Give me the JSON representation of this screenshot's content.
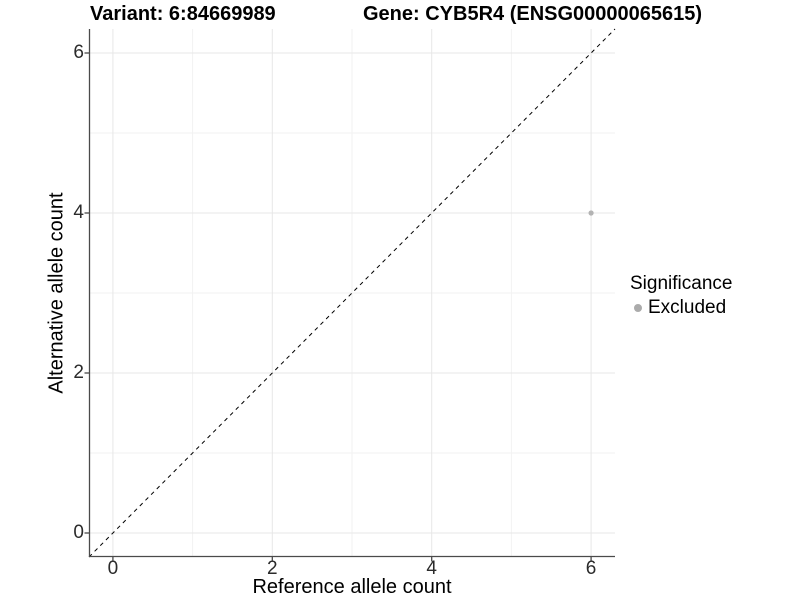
{
  "titles": {
    "left": "Variant: 6:84669989",
    "right": "Gene: CYB5R4 (ENSG00000065615)"
  },
  "chart_data": {
    "type": "scatter",
    "title": "Variant: 6:84669989 — Gene: CYB5R4 (ENSG00000065615)",
    "xlabel": "Reference allele count",
    "ylabel": "Alternative allele count",
    "xlim": [
      -0.3,
      6.3
    ],
    "ylim": [
      -0.3,
      6.3
    ],
    "xticks": [
      0,
      2,
      4,
      6
    ],
    "yticks": [
      0,
      2,
      4,
      6
    ],
    "x_minor_ticks": [
      1,
      3,
      5
    ],
    "y_minor_ticks": [
      1,
      3,
      5
    ],
    "grid": "on",
    "series": [
      {
        "name": "Excluded",
        "color": "#b3b3b3",
        "points": [
          {
            "x": 6,
            "y": 4
          }
        ]
      }
    ],
    "identity_line": {
      "slope": 1,
      "intercept": 0,
      "style": "dashed",
      "color": "#000000"
    },
    "legend": {
      "title": "Significance",
      "position": "right",
      "items": [
        {
          "label": "Excluded",
          "color": "#ababab"
        }
      ]
    },
    "colors": {
      "background": "#ffffff",
      "grid_major": "#e7e7e7",
      "grid_minor": "#f2f2f2",
      "axis_line": "#4a4a4a",
      "tick_text": "#2b2b2b"
    }
  }
}
